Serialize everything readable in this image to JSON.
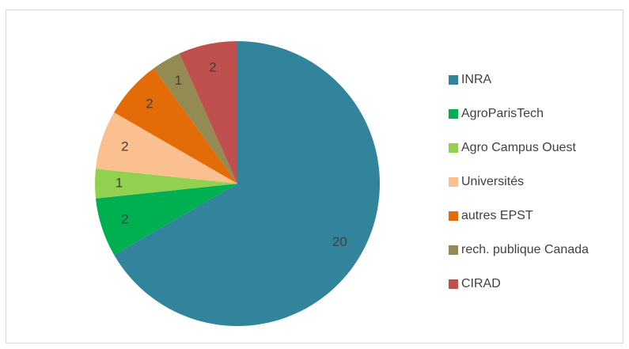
{
  "chart_data": {
    "type": "pie",
    "categories": [
      "INRA",
      "AgroParisTech",
      "Agro Campus Ouest",
      "Universités",
      "autres EPST",
      "rech. publique Canada",
      "CIRAD"
    ],
    "values": [
      20,
      2,
      1,
      2,
      2,
      1,
      2
    ],
    "colors": [
      "#31849b",
      "#00b050",
      "#92d050",
      "#fac090",
      "#e36c09",
      "#948a54",
      "#c0504d"
    ],
    "legend": "right"
  }
}
